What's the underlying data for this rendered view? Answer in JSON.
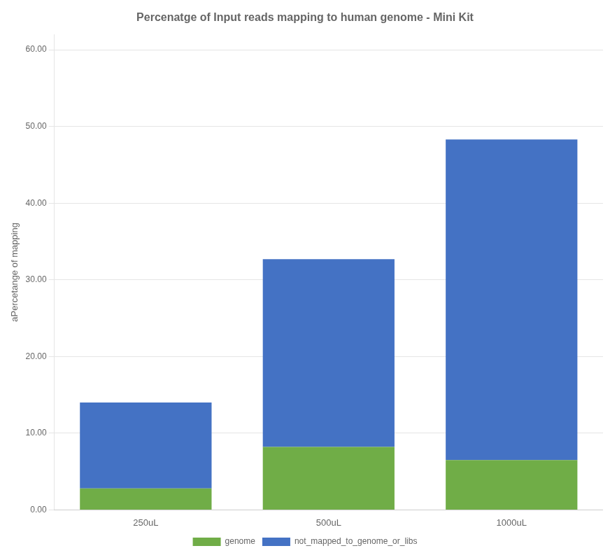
{
  "chart_data": {
    "type": "bar",
    "title": "Percenatge of Input reads mapping to human genome - Mini Kit",
    "ylabel": "aPercetange of mapping",
    "categories": [
      "250uL",
      "500uL",
      "1000uL"
    ],
    "series": [
      {
        "name": "genome",
        "color": "#70ad47",
        "values": [
          2.8,
          8.2,
          6.5
        ]
      },
      {
        "name": "not_mapped_to_genome_or_libs",
        "color": "#4472c4",
        "values": [
          11.2,
          24.5,
          41.8
        ]
      }
    ],
    "stacked": true,
    "ylim": [
      0,
      62
    ],
    "yticks": [
      {
        "value": 0,
        "label": "0.00"
      },
      {
        "value": 10,
        "label": "10.00"
      },
      {
        "value": 20,
        "label": "20.00"
      },
      {
        "value": 30,
        "label": "30.00"
      },
      {
        "value": 40,
        "label": "40.00"
      },
      {
        "value": 50,
        "label": "50.00"
      },
      {
        "value": 60,
        "label": "60.00"
      }
    ],
    "grid": true,
    "legend": "bottom"
  }
}
